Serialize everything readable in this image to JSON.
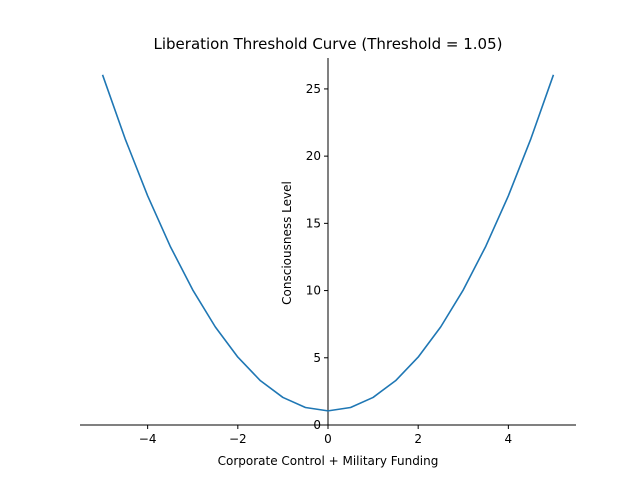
{
  "chart_data": {
    "type": "line",
    "title": "Liberation Threshold Curve (Threshold = 1.05)",
    "xlabel": "Corporate Control + Military Funding",
    "ylabel": "Consciousness Level",
    "xlim": [
      -5.5,
      5.5
    ],
    "ylim": [
      0,
      27.3
    ],
    "xticks": [
      -4,
      -2,
      0,
      2,
      4
    ],
    "yticks": [
      0,
      5,
      10,
      15,
      20,
      25
    ],
    "xtick_labels": [
      "−4",
      "−2",
      "0",
      "2",
      "4"
    ],
    "ytick_labels": [
      "0",
      "5",
      "10",
      "15",
      "20",
      "25"
    ],
    "grid": false,
    "spines": "centered",
    "series": [
      {
        "color": "#1f77b4",
        "x": [
          -5.0,
          -4.5,
          -4.0,
          -3.5,
          -3.0,
          -2.5,
          -2.0,
          -1.5,
          -1.0,
          -0.5,
          0.0,
          0.5,
          1.0,
          1.5,
          2.0,
          2.5,
          3.0,
          3.5,
          4.0,
          4.5,
          5.0
        ],
        "y": [
          26.05,
          21.3,
          17.05,
          13.3,
          10.05,
          7.3,
          5.05,
          3.3,
          2.05,
          1.3,
          1.05,
          1.3,
          2.05,
          3.3,
          5.05,
          7.3,
          10.05,
          13.3,
          17.05,
          21.3,
          26.05
        ]
      }
    ]
  }
}
